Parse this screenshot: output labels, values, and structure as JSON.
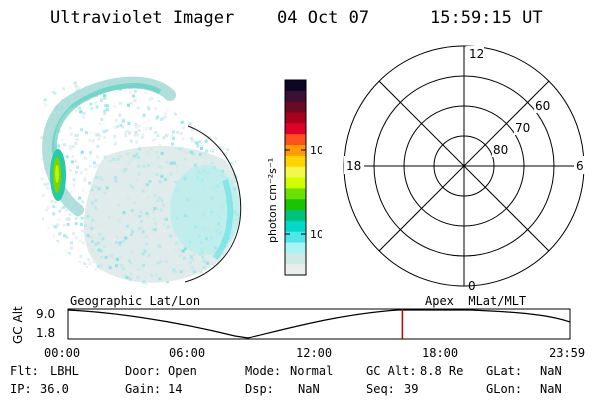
{
  "header": {
    "instrument": "Ultraviolet Imager",
    "date": "04 Oct 07",
    "time": "15:59:15 UT"
  },
  "colorbar": {
    "unit_label": "photon cm⁻²s⁻¹",
    "ticks": [
      "100",
      "10"
    ],
    "colors": [
      "#0b0624",
      "#3a1033",
      "#6c0a26",
      "#a8001c",
      "#e0002a",
      "#ff5020",
      "#ff9a00",
      "#ffd400",
      "#f4f84a",
      "#cfff00",
      "#6ee000",
      "#1cc400",
      "#00c27a",
      "#00d8c8",
      "#4fe6ea",
      "#a8f4f2",
      "#cfeae6",
      "#e8eeec"
    ]
  },
  "polar_grid": {
    "hour_labels": [
      "12",
      "18",
      "6",
      "0"
    ],
    "lat_labels": [
      "60",
      "70",
      "80"
    ]
  },
  "timeline": {
    "left_title": "Geographic Lat/Lon",
    "right_title": "Apex  MLat/MLT",
    "y_axis_label": "GC Alt",
    "y_top": "9.0",
    "y_bottom": "1.8",
    "x_ticks": [
      "00:00",
      "06:00",
      "12:00",
      "18:00",
      "23:59"
    ],
    "current_time_fraction": 0.6661
  },
  "info": {
    "filter_label": "Flt:",
    "filter": "LBHL",
    "ip_label": "IP:",
    "ip": "36.0",
    "door_label": "Door:",
    "door": "Open",
    "gain_label": "Gain:",
    "gain": "14",
    "mode_label": "Mode:",
    "mode": "Normal",
    "dsp_label": "Dsp:",
    "dsp": "NaN",
    "gcalt_label": "GC Alt:",
    "gcalt": "8.8 Re",
    "seq_label": "Seq:",
    "seq": "39",
    "glat_label": "GLat:",
    "glat": "NaN",
    "glon_label": "GLon:",
    "glon": "NaN"
  }
}
